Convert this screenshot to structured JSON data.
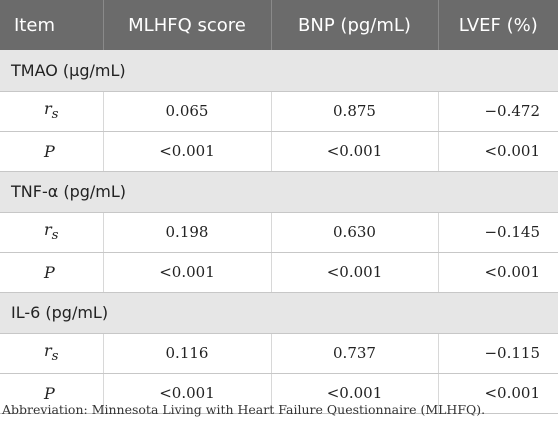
{
  "table": {
    "headers": [
      "Item",
      "MLHFQ score",
      "BNP (pg/mL)",
      "LVEF (%)"
    ],
    "groups": [
      {
        "label": "TMAO (µg/mL)",
        "rows": [
          {
            "stat": "r",
            "sub": "s",
            "values": [
              "0.065",
              "0.875",
              "−0.472"
            ]
          },
          {
            "stat": "P",
            "sub": "",
            "values": [
              "<0.001",
              "<0.001",
              "<0.001"
            ]
          }
        ]
      },
      {
        "label": "TNF-α (pg/mL)",
        "rows": [
          {
            "stat": "r",
            "sub": "s",
            "values": [
              "0.198",
              "0.630",
              "−0.145"
            ]
          },
          {
            "stat": "P",
            "sub": "",
            "values": [
              "<0.001",
              "<0.001",
              "<0.001"
            ]
          }
        ]
      },
      {
        "label": "IL-6 (pg/mL)",
        "rows": [
          {
            "stat": "r",
            "sub": "s",
            "values": [
              "0.116",
              "0.737",
              "−0.115"
            ]
          },
          {
            "stat": "P",
            "sub": "",
            "values": [
              "<0.001",
              "<0.001",
              "<0.001"
            ]
          }
        ]
      }
    ]
  },
  "footnote": "Abbreviation: Minnesota Living with Heart Failure Questionnaire (MLHFQ)."
}
